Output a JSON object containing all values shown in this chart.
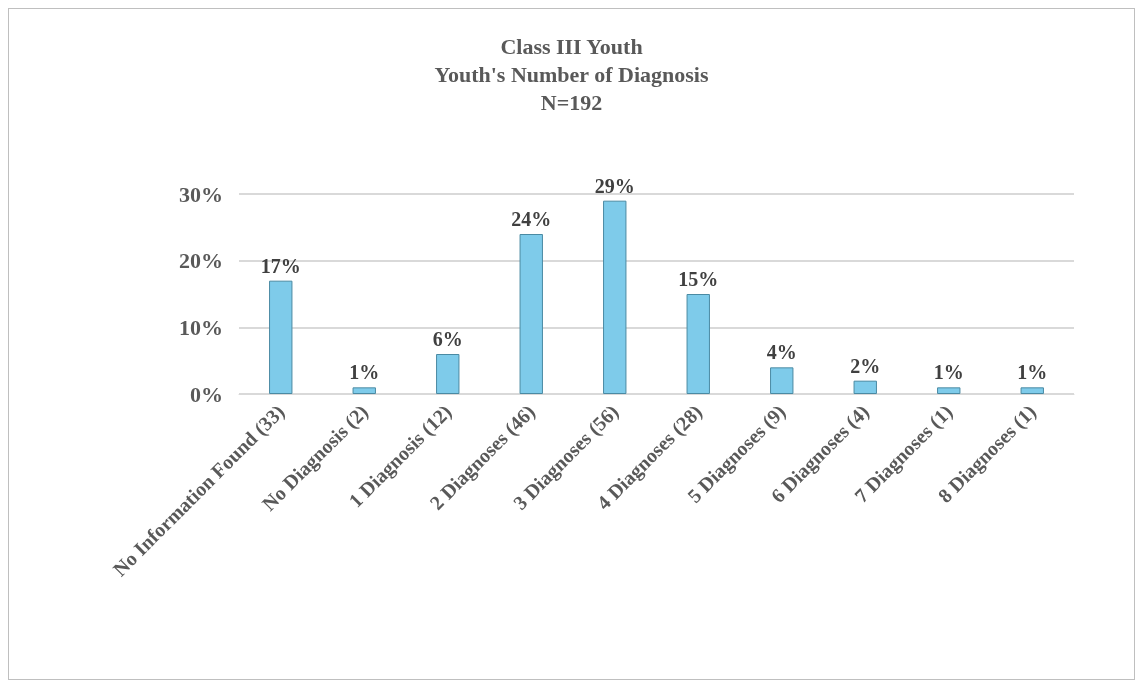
{
  "chart_data": {
    "type": "bar",
    "title": "Class III Youth\nYouth's Number of Diagnosis\nN=192",
    "categories": [
      "No Information Found (33)",
      "No Diagnosis (2)",
      "1 Diagnosis (12)",
      "2 Diagnoses (46)",
      "3 Diagnoses (56)",
      "4 Diagnoses (28)",
      "5 Diagnoses (9)",
      "6 Diagnoses (4)",
      "7 Diagnoses (1)",
      "8 Diagnoses (1)"
    ],
    "values": [
      17,
      1,
      6,
      24,
      29,
      15,
      4,
      2,
      1,
      1
    ],
    "value_labels": [
      "17%",
      "1%",
      "6%",
      "24%",
      "29%",
      "15%",
      "4%",
      "2%",
      "1%",
      "1%"
    ],
    "color": "#7ecbea",
    "ylim": [
      0,
      30
    ],
    "yticks": [
      {
        "value": 0,
        "label": "0%"
      },
      {
        "value": 10,
        "label": "10%"
      },
      {
        "value": 20,
        "label": "20%"
      },
      {
        "value": 30,
        "label": "30%"
      }
    ],
    "grid": "y"
  }
}
